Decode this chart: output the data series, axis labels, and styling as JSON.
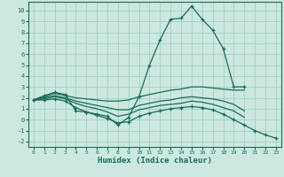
{
  "xlabel": "Humidex (Indice chaleur)",
  "bg_color": "#cce8e0",
  "grid_color": "#99ccc0",
  "line_color": "#1a6b5a",
  "xlim": [
    -0.5,
    23.5
  ],
  "ylim": [
    -2.5,
    10.8
  ],
  "yticks": [
    -2,
    -1,
    0,
    1,
    2,
    3,
    4,
    5,
    6,
    7,
    8,
    9,
    10
  ],
  "xticks": [
    0,
    1,
    2,
    3,
    4,
    5,
    6,
    7,
    8,
    9,
    10,
    11,
    12,
    13,
    14,
    15,
    16,
    17,
    18,
    19,
    20,
    21,
    22,
    23
  ],
  "series": [
    {
      "x": [
        0,
        1,
        2,
        3,
        4,
        5,
        6,
        7,
        8,
        9,
        10,
        11,
        12,
        13,
        14,
        15,
        16,
        17,
        18,
        19,
        20
      ],
      "y": [
        1.8,
        2.2,
        2.5,
        2.3,
        0.8,
        0.7,
        0.5,
        0.3,
        -0.5,
        0.2,
        2.1,
        5.0,
        7.3,
        9.2,
        9.3,
        10.4,
        9.2,
        8.2,
        6.5,
        3.0,
        3.0
      ],
      "marker": true
    },
    {
      "x": [
        0,
        1,
        2,
        3,
        4,
        5,
        6,
        7,
        8,
        9,
        10,
        11,
        12,
        13,
        14,
        15,
        16,
        17,
        18,
        19,
        20
      ],
      "y": [
        1.8,
        2.1,
        2.4,
        2.2,
        2.0,
        1.9,
        1.8,
        1.7,
        1.7,
        1.8,
        2.1,
        2.3,
        2.5,
        2.7,
        2.8,
        3.0,
        3.0,
        2.9,
        2.8,
        2.7,
        2.7
      ],
      "marker": false
    },
    {
      "x": [
        0,
        1,
        2,
        3,
        4,
        5,
        6,
        7,
        8,
        9,
        10,
        11,
        12,
        13,
        14,
        15,
        16,
        17,
        18,
        19,
        20
      ],
      "y": [
        1.8,
        2.0,
        2.2,
        2.0,
        1.7,
        1.5,
        1.3,
        1.1,
        0.9,
        0.9,
        1.3,
        1.5,
        1.7,
        1.8,
        2.0,
        2.1,
        2.0,
        1.9,
        1.7,
        1.4,
        0.8
      ],
      "marker": false
    },
    {
      "x": [
        0,
        1,
        2,
        3,
        4,
        5,
        6,
        7,
        8,
        9,
        10,
        11,
        12,
        13,
        14,
        15,
        16,
        17,
        18,
        19,
        20
      ],
      "y": [
        1.8,
        1.9,
        2.1,
        1.9,
        1.5,
        1.2,
        1.0,
        0.7,
        0.3,
        0.5,
        0.9,
        1.1,
        1.3,
        1.4,
        1.5,
        1.7,
        1.6,
        1.4,
        1.1,
        0.8,
        0.2
      ],
      "marker": false
    },
    {
      "x": [
        0,
        1,
        2,
        3,
        4,
        5,
        6,
        7,
        8,
        9,
        10,
        11,
        12,
        13,
        14,
        15,
        16,
        17,
        18,
        19,
        20,
        21,
        22,
        23
      ],
      "y": [
        1.8,
        1.8,
        1.9,
        1.7,
        1.1,
        0.7,
        0.4,
        0.1,
        -0.3,
        -0.2,
        0.3,
        0.6,
        0.8,
        1.0,
        1.1,
        1.2,
        1.1,
        0.9,
        0.5,
        0.0,
        -0.5,
        -1.0,
        -1.4,
        -1.7
      ],
      "marker": true
    }
  ]
}
